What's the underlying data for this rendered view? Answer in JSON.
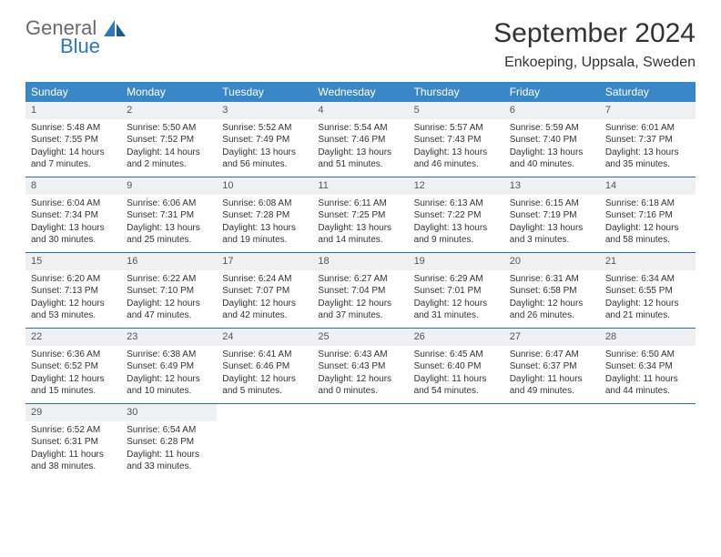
{
  "brand": {
    "name1": "General",
    "name2": "Blue"
  },
  "title": "September 2024",
  "location": "Enkoeping, Uppsala, Sweden",
  "colors": {
    "header_bg": "#3a87c8",
    "row_border": "#2f6aa0",
    "daynum_bg": "#eef0f2",
    "text": "#333333",
    "logo_gray": "#6a6a6a",
    "logo_blue": "#2f78b8"
  },
  "weekdays": [
    "Sunday",
    "Monday",
    "Tuesday",
    "Wednesday",
    "Thursday",
    "Friday",
    "Saturday"
  ],
  "weeks": [
    [
      {
        "n": "1",
        "sr": "Sunrise: 5:48 AM",
        "ss": "Sunset: 7:55 PM",
        "dl": "Daylight: 14 hours and 7 minutes."
      },
      {
        "n": "2",
        "sr": "Sunrise: 5:50 AM",
        "ss": "Sunset: 7:52 PM",
        "dl": "Daylight: 14 hours and 2 minutes."
      },
      {
        "n": "3",
        "sr": "Sunrise: 5:52 AM",
        "ss": "Sunset: 7:49 PM",
        "dl": "Daylight: 13 hours and 56 minutes."
      },
      {
        "n": "4",
        "sr": "Sunrise: 5:54 AM",
        "ss": "Sunset: 7:46 PM",
        "dl": "Daylight: 13 hours and 51 minutes."
      },
      {
        "n": "5",
        "sr": "Sunrise: 5:57 AM",
        "ss": "Sunset: 7:43 PM",
        "dl": "Daylight: 13 hours and 46 minutes."
      },
      {
        "n": "6",
        "sr": "Sunrise: 5:59 AM",
        "ss": "Sunset: 7:40 PM",
        "dl": "Daylight: 13 hours and 40 minutes."
      },
      {
        "n": "7",
        "sr": "Sunrise: 6:01 AM",
        "ss": "Sunset: 7:37 PM",
        "dl": "Daylight: 13 hours and 35 minutes."
      }
    ],
    [
      {
        "n": "8",
        "sr": "Sunrise: 6:04 AM",
        "ss": "Sunset: 7:34 PM",
        "dl": "Daylight: 13 hours and 30 minutes."
      },
      {
        "n": "9",
        "sr": "Sunrise: 6:06 AM",
        "ss": "Sunset: 7:31 PM",
        "dl": "Daylight: 13 hours and 25 minutes."
      },
      {
        "n": "10",
        "sr": "Sunrise: 6:08 AM",
        "ss": "Sunset: 7:28 PM",
        "dl": "Daylight: 13 hours and 19 minutes."
      },
      {
        "n": "11",
        "sr": "Sunrise: 6:11 AM",
        "ss": "Sunset: 7:25 PM",
        "dl": "Daylight: 13 hours and 14 minutes."
      },
      {
        "n": "12",
        "sr": "Sunrise: 6:13 AM",
        "ss": "Sunset: 7:22 PM",
        "dl": "Daylight: 13 hours and 9 minutes."
      },
      {
        "n": "13",
        "sr": "Sunrise: 6:15 AM",
        "ss": "Sunset: 7:19 PM",
        "dl": "Daylight: 13 hours and 3 minutes."
      },
      {
        "n": "14",
        "sr": "Sunrise: 6:18 AM",
        "ss": "Sunset: 7:16 PM",
        "dl": "Daylight: 12 hours and 58 minutes."
      }
    ],
    [
      {
        "n": "15",
        "sr": "Sunrise: 6:20 AM",
        "ss": "Sunset: 7:13 PM",
        "dl": "Daylight: 12 hours and 53 minutes."
      },
      {
        "n": "16",
        "sr": "Sunrise: 6:22 AM",
        "ss": "Sunset: 7:10 PM",
        "dl": "Daylight: 12 hours and 47 minutes."
      },
      {
        "n": "17",
        "sr": "Sunrise: 6:24 AM",
        "ss": "Sunset: 7:07 PM",
        "dl": "Daylight: 12 hours and 42 minutes."
      },
      {
        "n": "18",
        "sr": "Sunrise: 6:27 AM",
        "ss": "Sunset: 7:04 PM",
        "dl": "Daylight: 12 hours and 37 minutes."
      },
      {
        "n": "19",
        "sr": "Sunrise: 6:29 AM",
        "ss": "Sunset: 7:01 PM",
        "dl": "Daylight: 12 hours and 31 minutes."
      },
      {
        "n": "20",
        "sr": "Sunrise: 6:31 AM",
        "ss": "Sunset: 6:58 PM",
        "dl": "Daylight: 12 hours and 26 minutes."
      },
      {
        "n": "21",
        "sr": "Sunrise: 6:34 AM",
        "ss": "Sunset: 6:55 PM",
        "dl": "Daylight: 12 hours and 21 minutes."
      }
    ],
    [
      {
        "n": "22",
        "sr": "Sunrise: 6:36 AM",
        "ss": "Sunset: 6:52 PM",
        "dl": "Daylight: 12 hours and 15 minutes."
      },
      {
        "n": "23",
        "sr": "Sunrise: 6:38 AM",
        "ss": "Sunset: 6:49 PM",
        "dl": "Daylight: 12 hours and 10 minutes."
      },
      {
        "n": "24",
        "sr": "Sunrise: 6:41 AM",
        "ss": "Sunset: 6:46 PM",
        "dl": "Daylight: 12 hours and 5 minutes."
      },
      {
        "n": "25",
        "sr": "Sunrise: 6:43 AM",
        "ss": "Sunset: 6:43 PM",
        "dl": "Daylight: 12 hours and 0 minutes."
      },
      {
        "n": "26",
        "sr": "Sunrise: 6:45 AM",
        "ss": "Sunset: 6:40 PM",
        "dl": "Daylight: 11 hours and 54 minutes."
      },
      {
        "n": "27",
        "sr": "Sunrise: 6:47 AM",
        "ss": "Sunset: 6:37 PM",
        "dl": "Daylight: 11 hours and 49 minutes."
      },
      {
        "n": "28",
        "sr": "Sunrise: 6:50 AM",
        "ss": "Sunset: 6:34 PM",
        "dl": "Daylight: 11 hours and 44 minutes."
      }
    ],
    [
      {
        "n": "29",
        "sr": "Sunrise: 6:52 AM",
        "ss": "Sunset: 6:31 PM",
        "dl": "Daylight: 11 hours and 38 minutes."
      },
      {
        "n": "30",
        "sr": "Sunrise: 6:54 AM",
        "ss": "Sunset: 6:28 PM",
        "dl": "Daylight: 11 hours and 33 minutes."
      },
      null,
      null,
      null,
      null,
      null
    ]
  ]
}
